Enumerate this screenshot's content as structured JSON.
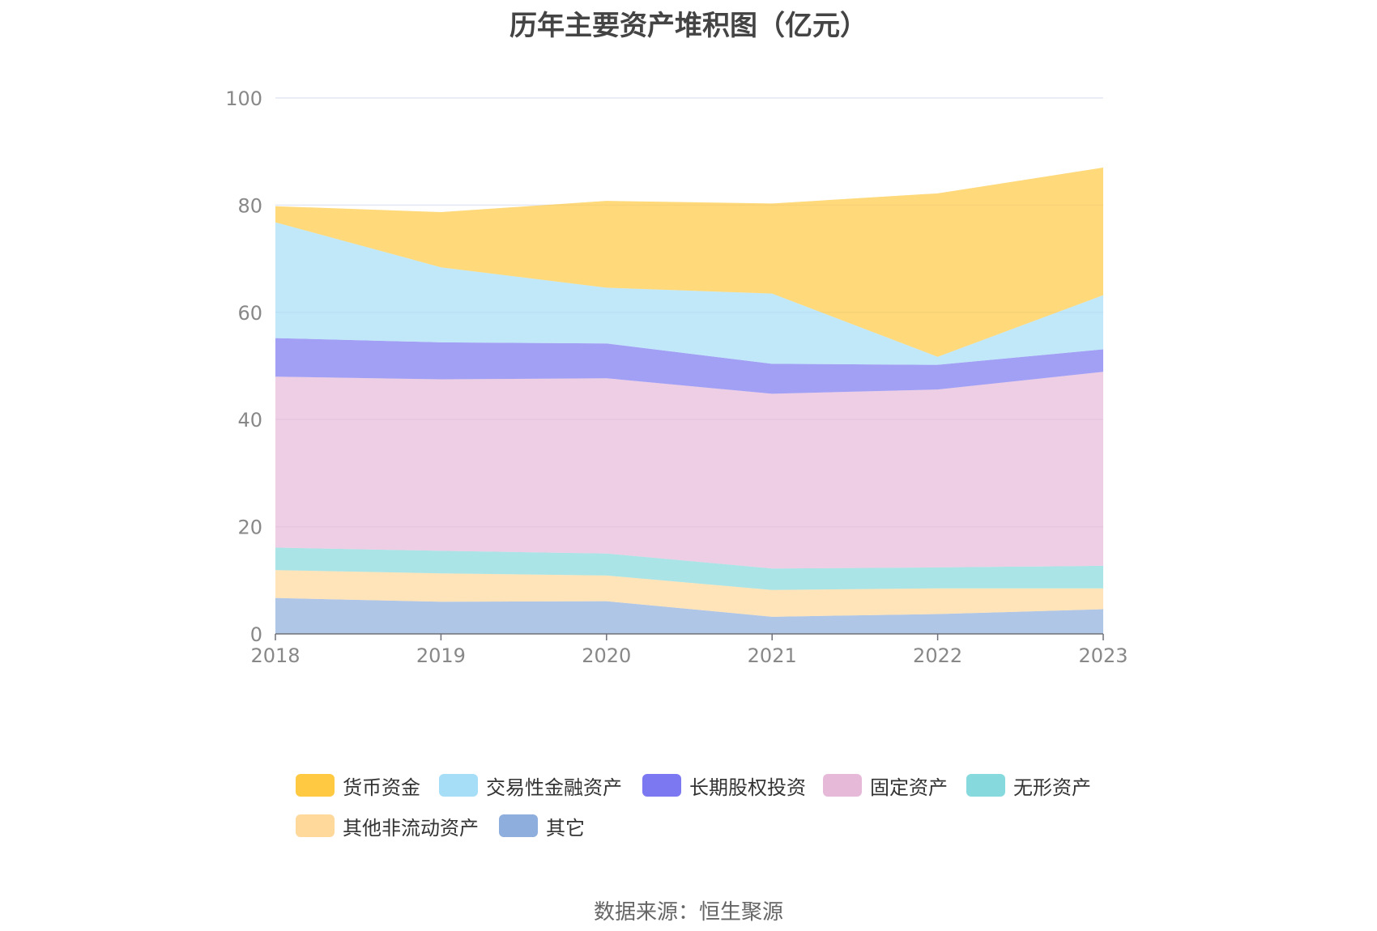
{
  "title": "历年主要资产堆积图（亿元）",
  "source": "数据来源：恒生聚源",
  "chart_data": {
    "type": "area",
    "stacked": true,
    "x": [
      "2018",
      "2019",
      "2020",
      "2021",
      "2022",
      "2023"
    ],
    "ylim": [
      0,
      100
    ],
    "yticks": [
      "0",
      "20",
      "40",
      "60",
      "80",
      "100"
    ],
    "grid": true,
    "legend_position": "bottom",
    "series": [
      {
        "name": "其它",
        "color": "#8eaedd",
        "values": [
          6.7,
          6.0,
          6.1,
          3.2,
          3.7,
          4.6
        ]
      },
      {
        "name": "其他非流动资产",
        "color": "#ffd99b",
        "values": [
          5.2,
          5.3,
          4.8,
          5.0,
          4.8,
          3.9
        ]
      },
      {
        "name": "无形资产",
        "color": "#86d9dc",
        "values": [
          4.2,
          4.2,
          4.1,
          4.0,
          3.9,
          4.2
        ]
      },
      {
        "name": "固定资产",
        "color": "#e6b9d9",
        "values": [
          31.9,
          32.0,
          32.7,
          32.6,
          33.2,
          36.2
        ]
      },
      {
        "name": "长期股权投资",
        "color": "#7b78f1",
        "values": [
          7.2,
          6.9,
          6.5,
          5.6,
          4.6,
          4.2
        ]
      },
      {
        "name": "交易性金融资产",
        "color": "#a7def7",
        "values": [
          21.6,
          14.0,
          10.4,
          13.1,
          1.5,
          10.1
        ]
      },
      {
        "name": "货币资金",
        "color": "#ffc942",
        "values": [
          3.0,
          10.3,
          16.2,
          16.8,
          30.5,
          23.8
        ]
      }
    ],
    "legend_order": [
      "货币资金",
      "交易性金融资产",
      "长期股权投资",
      "固定资产",
      "无形资产",
      "其他非流动资产",
      "其它"
    ]
  }
}
